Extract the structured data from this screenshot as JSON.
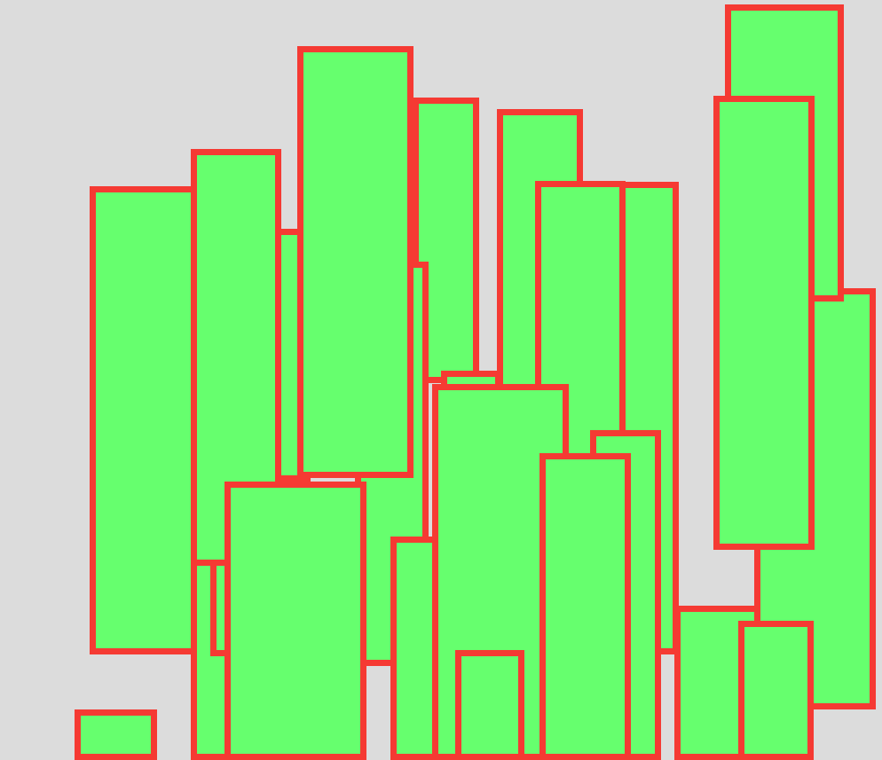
{
  "canvas": {
    "background_color": "#dcdcdc"
  },
  "style": {
    "fill_color": "#66ff6e",
    "stroke_color": "#f53a33"
  },
  "shapes": [
    {
      "kind": "rectangle"
    },
    {
      "kind": "rectangle"
    },
    {
      "kind": "rectangle"
    },
    {
      "kind": "rectangle"
    },
    {
      "kind": "rectangle"
    },
    {
      "kind": "rectangle"
    },
    {
      "kind": "rectangle"
    },
    {
      "kind": "rectangle"
    },
    {
      "kind": "rectangle"
    },
    {
      "kind": "rectangle"
    },
    {
      "kind": "rectangle"
    },
    {
      "kind": "rectangle"
    },
    {
      "kind": "rectangle"
    },
    {
      "kind": "rectangle"
    },
    {
      "kind": "rectangle"
    },
    {
      "kind": "rectangle"
    },
    {
      "kind": "rectangle"
    },
    {
      "kind": "rectangle"
    },
    {
      "kind": "rectangle"
    },
    {
      "kind": "rectangle"
    },
    {
      "kind": "rectangle"
    },
    {
      "kind": "rectangle"
    },
    {
      "kind": "rectangle"
    },
    {
      "kind": "rectangle"
    }
  ]
}
